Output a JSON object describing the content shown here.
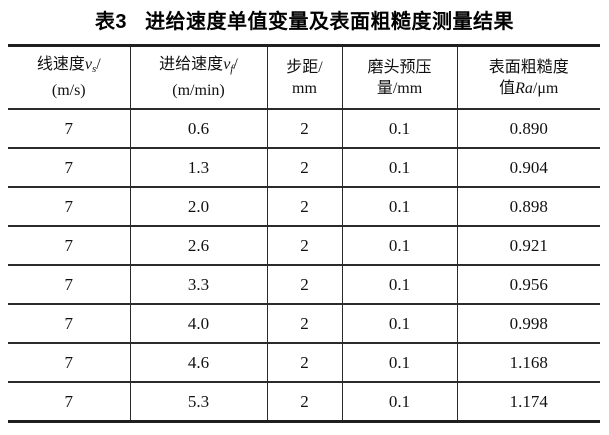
{
  "colors": {
    "background": "#ffffff",
    "text": "#111111",
    "line": "#2b2b2b"
  },
  "caption": {
    "number": "表3",
    "title": "进给速度单值变量及表面粗糙度测量结果"
  },
  "table": {
    "header": [
      {
        "line1": "线速度",
        "var": "v",
        "var_sub": "s",
        "after_var": "/",
        "line2": "(m/s)"
      },
      {
        "line1": "进给速度",
        "var": "v",
        "var_sub": "f",
        "after_var": "/",
        "line2": "(m/min)"
      },
      {
        "line1": "步距/",
        "line2": "mm"
      },
      {
        "line1": "磨头预压",
        "line2": "量/mm"
      },
      {
        "line1": "表面粗糙度",
        "line2_pre": "值",
        "line2_var": "Ra",
        "line2_post": "/μm"
      }
    ],
    "rows": [
      [
        "7",
        "0.6",
        "2",
        "0.1",
        "0.890"
      ],
      [
        "7",
        "1.3",
        "2",
        "0.1",
        "0.904"
      ],
      [
        "7",
        "2.0",
        "2",
        "0.1",
        "0.898"
      ],
      [
        "7",
        "2.6",
        "2",
        "0.1",
        "0.921"
      ],
      [
        "7",
        "3.3",
        "2",
        "0.1",
        "0.956"
      ],
      [
        "7",
        "4.0",
        "2",
        "0.1",
        "0.998"
      ],
      [
        "7",
        "4.6",
        "2",
        "0.1",
        "1.168"
      ],
      [
        "7",
        "5.3",
        "2",
        "0.1",
        "1.174"
      ]
    ]
  }
}
